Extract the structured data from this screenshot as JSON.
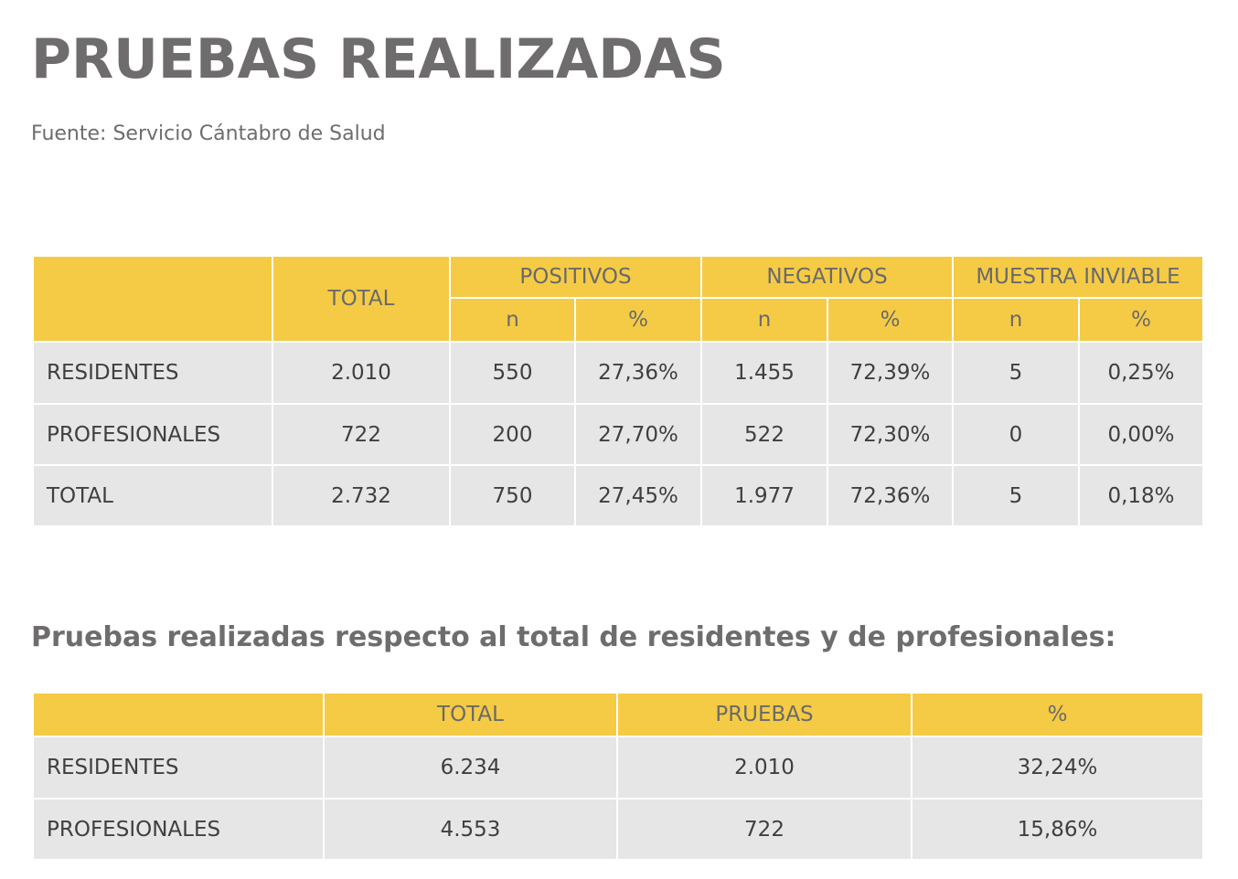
{
  "header": {
    "title": "PRUEBAS REALIZADAS",
    "source": "Fuente: Servicio Cántabro de Salud"
  },
  "table1": {
    "header_top": [
      "TOTAL",
      "POSITIVOS",
      "NEGATIVOS",
      "MUESTRA INVIABLE"
    ],
    "header_sub": [
      "n",
      "%",
      "n",
      "%",
      "n",
      "%"
    ],
    "rows": [
      [
        "RESIDENTES",
        "2.010",
        "550",
        "27,36%",
        "1.455",
        "72,39%",
        "5",
        "0,25%"
      ],
      [
        "PROFESIONALES",
        "722",
        "200",
        "27,70%",
        "522",
        "72,30%",
        "0",
        "0,00%"
      ],
      [
        "TOTAL",
        "2.732",
        "750",
        "27,45%",
        "1.977",
        "72,36%",
        "5",
        "0,18%"
      ]
    ]
  },
  "subtitle": "Pruebas realizadas respecto al total de residentes y de profesionales:",
  "table2": {
    "columns": [
      "TOTAL",
      "PRUEBAS",
      "%"
    ],
    "rows": [
      [
        "RESIDENTES",
        "6.234",
        "2.010",
        "32,24%"
      ],
      [
        "PROFESIONALES",
        "4.553",
        "722",
        "15,86%"
      ]
    ]
  }
}
